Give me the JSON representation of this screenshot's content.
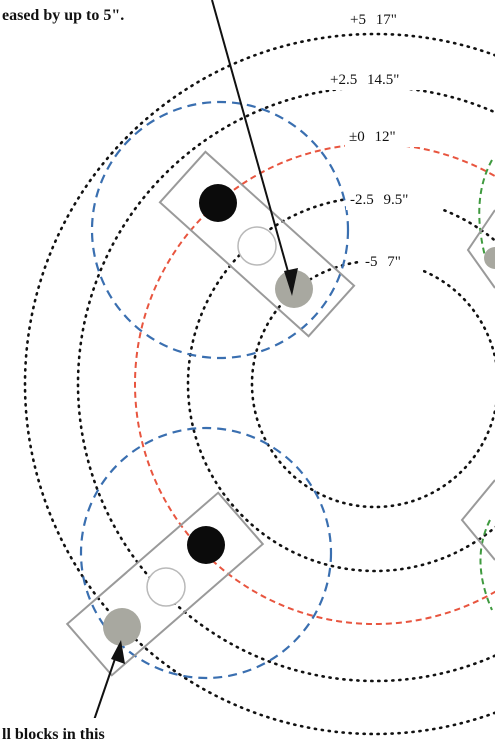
{
  "captions": {
    "top": "eased by up to 5\".",
    "bottom": "ll blocks in this"
  },
  "rings": [
    {
      "offset": "+5",
      "size": "17\""
    },
    {
      "offset": "+2.5",
      "size": "14.5\""
    },
    {
      "offset": "±0",
      "size": "12\""
    },
    {
      "offset": "-2.5",
      "size": "9.5\""
    },
    {
      "offset": "-5",
      "size": "7\""
    }
  ],
  "colors": {
    "reference_ring": "#e8553f",
    "side_ring": "#3f9a3f",
    "block_circle": "#3a6fb0",
    "dotted_ring": "#111111",
    "block_outline": "#9a9a9a",
    "black_dot": "#0b0b0b",
    "gray_dot": "#a8a8a0"
  },
  "blocks": [
    {
      "id": "upper",
      "dots": [
        "black",
        "empty",
        "gray"
      ]
    },
    {
      "id": "lower",
      "dots": [
        "gray",
        "empty",
        "black"
      ]
    }
  ]
}
